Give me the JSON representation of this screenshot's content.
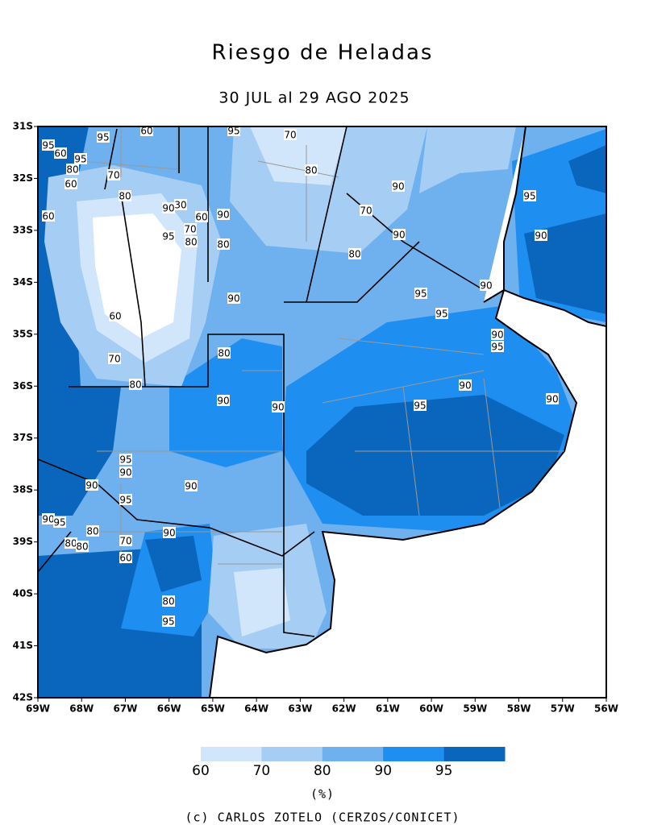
{
  "header": {
    "title": "Riesgo de Heladas",
    "subtitle": "30 JUL al 29 AGO 2025"
  },
  "map": {
    "lat_ticks": [
      {
        "value": 31,
        "label": "31S"
      },
      {
        "value": 32,
        "label": "32S"
      },
      {
        "value": 33,
        "label": "33S"
      },
      {
        "value": 34,
        "label": "34S"
      },
      {
        "value": 35,
        "label": "35S"
      },
      {
        "value": 36,
        "label": "36S"
      },
      {
        "value": 37,
        "label": "37S"
      },
      {
        "value": 38,
        "label": "38S"
      },
      {
        "value": 39,
        "label": "39S"
      },
      {
        "value": 40,
        "label": "40S"
      },
      {
        "value": 41,
        "label": "41S"
      },
      {
        "value": 42,
        "label": "42S"
      }
    ],
    "lon_ticks": [
      {
        "value": 69,
        "label": "69W"
      },
      {
        "value": 68,
        "label": "68W"
      },
      {
        "value": 67,
        "label": "67W"
      },
      {
        "value": 66,
        "label": "66W"
      },
      {
        "value": 65,
        "label": "65W"
      },
      {
        "value": 64,
        "label": "64W"
      },
      {
        "value": 63,
        "label": "63W"
      },
      {
        "value": 62,
        "label": "62W"
      },
      {
        "value": 61,
        "label": "61W"
      },
      {
        "value": 60,
        "label": "60W"
      },
      {
        "value": 59,
        "label": "59W"
      },
      {
        "value": 58,
        "label": "58W"
      },
      {
        "value": 57,
        "label": "57W"
      },
      {
        "value": 56,
        "label": "56W"
      }
    ],
    "latlim": [
      31,
      42
    ],
    "lonlim": [
      69,
      56
    ],
    "contour_labels": [
      95,
      60,
      95,
      80,
      60,
      95,
      60,
      70,
      95,
      70,
      60,
      80,
      90,
      30,
      60,
      95,
      80,
      70,
      90,
      80,
      60,
      70,
      80,
      80,
      70,
      80,
      90,
      90,
      95,
      95,
      90,
      80,
      95,
      90,
      90,
      95,
      90,
      90,
      95,
      90,
      90,
      90,
      95,
      90,
      95,
      90,
      90,
      90,
      95,
      80,
      80,
      80,
      70,
      60,
      90,
      80,
      95
    ]
  },
  "colorbar": {
    "levels": [
      60,
      70,
      80,
      90,
      95
    ],
    "colors": [
      "#d2e6fb",
      "#a6cdf4",
      "#6fb0ef",
      "#1f8ef1",
      "#0a66bc"
    ],
    "unit": "(%)"
  },
  "footer": {
    "credit": "(c) CARLOS ZOTELO (CERZOS/CONICET)"
  }
}
